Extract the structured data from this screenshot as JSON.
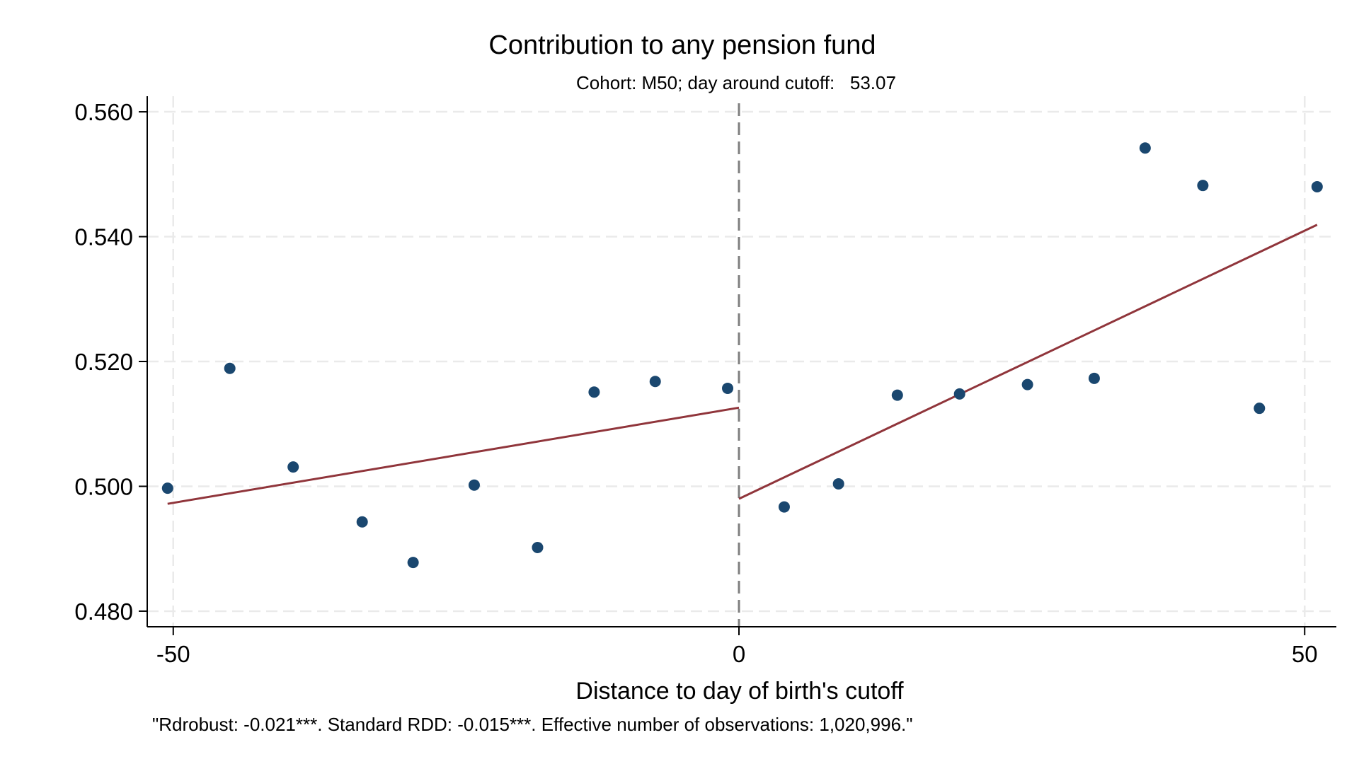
{
  "chart_data": {
    "type": "scatter",
    "title": "Contribution to any pension fund",
    "subtitle": "Cohort: M50; day around cutoff:   53.07",
    "xlabel": "Distance to day of birth's cutoff",
    "ylabel": "",
    "note": "\"Rdrobust: -0.021***. Standard RDD: -0.015***. Effective number of observations: 1,020,996.\"",
    "xlim": [
      -52.3,
      52.8
    ],
    "ylim": [
      0.4775,
      0.5625
    ],
    "x_ticks": [
      -50,
      0,
      50
    ],
    "x_tick_labels": [
      "-50",
      "0",
      "50"
    ],
    "y_ticks": [
      0.48,
      0.5,
      0.52,
      0.54,
      0.56
    ],
    "y_tick_labels": [
      "0.480",
      "0.500",
      "0.520",
      "0.540",
      "0.560"
    ],
    "grid": true,
    "cutoff": 0,
    "colors": {
      "points": "#1a476f",
      "fit": "#90353b",
      "cutoff_line": "#7f7f7f",
      "grid": "#eaeaea"
    },
    "series": [
      {
        "type": "scatter",
        "x": [
          -50.5,
          -45.0,
          -39.4,
          -33.3,
          -28.8,
          -23.4,
          -17.8,
          -12.8,
          -7.4,
          -1.0,
          4.0,
          8.8,
          14.0,
          19.5,
          25.5,
          31.4,
          35.9,
          41.0,
          46.0,
          51.1
        ],
        "y": [
          0.4997,
          0.5189,
          0.5031,
          0.4943,
          0.4878,
          0.5002,
          0.4902,
          0.5151,
          0.5168,
          0.5157,
          0.4967,
          0.5004,
          0.5146,
          0.5148,
          0.5163,
          0.5173,
          0.5542,
          0.5482,
          0.5125,
          0.548
        ]
      },
      {
        "type": "line",
        "x": [
          -50.5,
          0
        ],
        "y": [
          0.4972,
          0.5126
        ]
      },
      {
        "type": "line",
        "x": [
          0,
          51.1
        ],
        "y": [
          0.498,
          0.5419
        ]
      }
    ]
  }
}
